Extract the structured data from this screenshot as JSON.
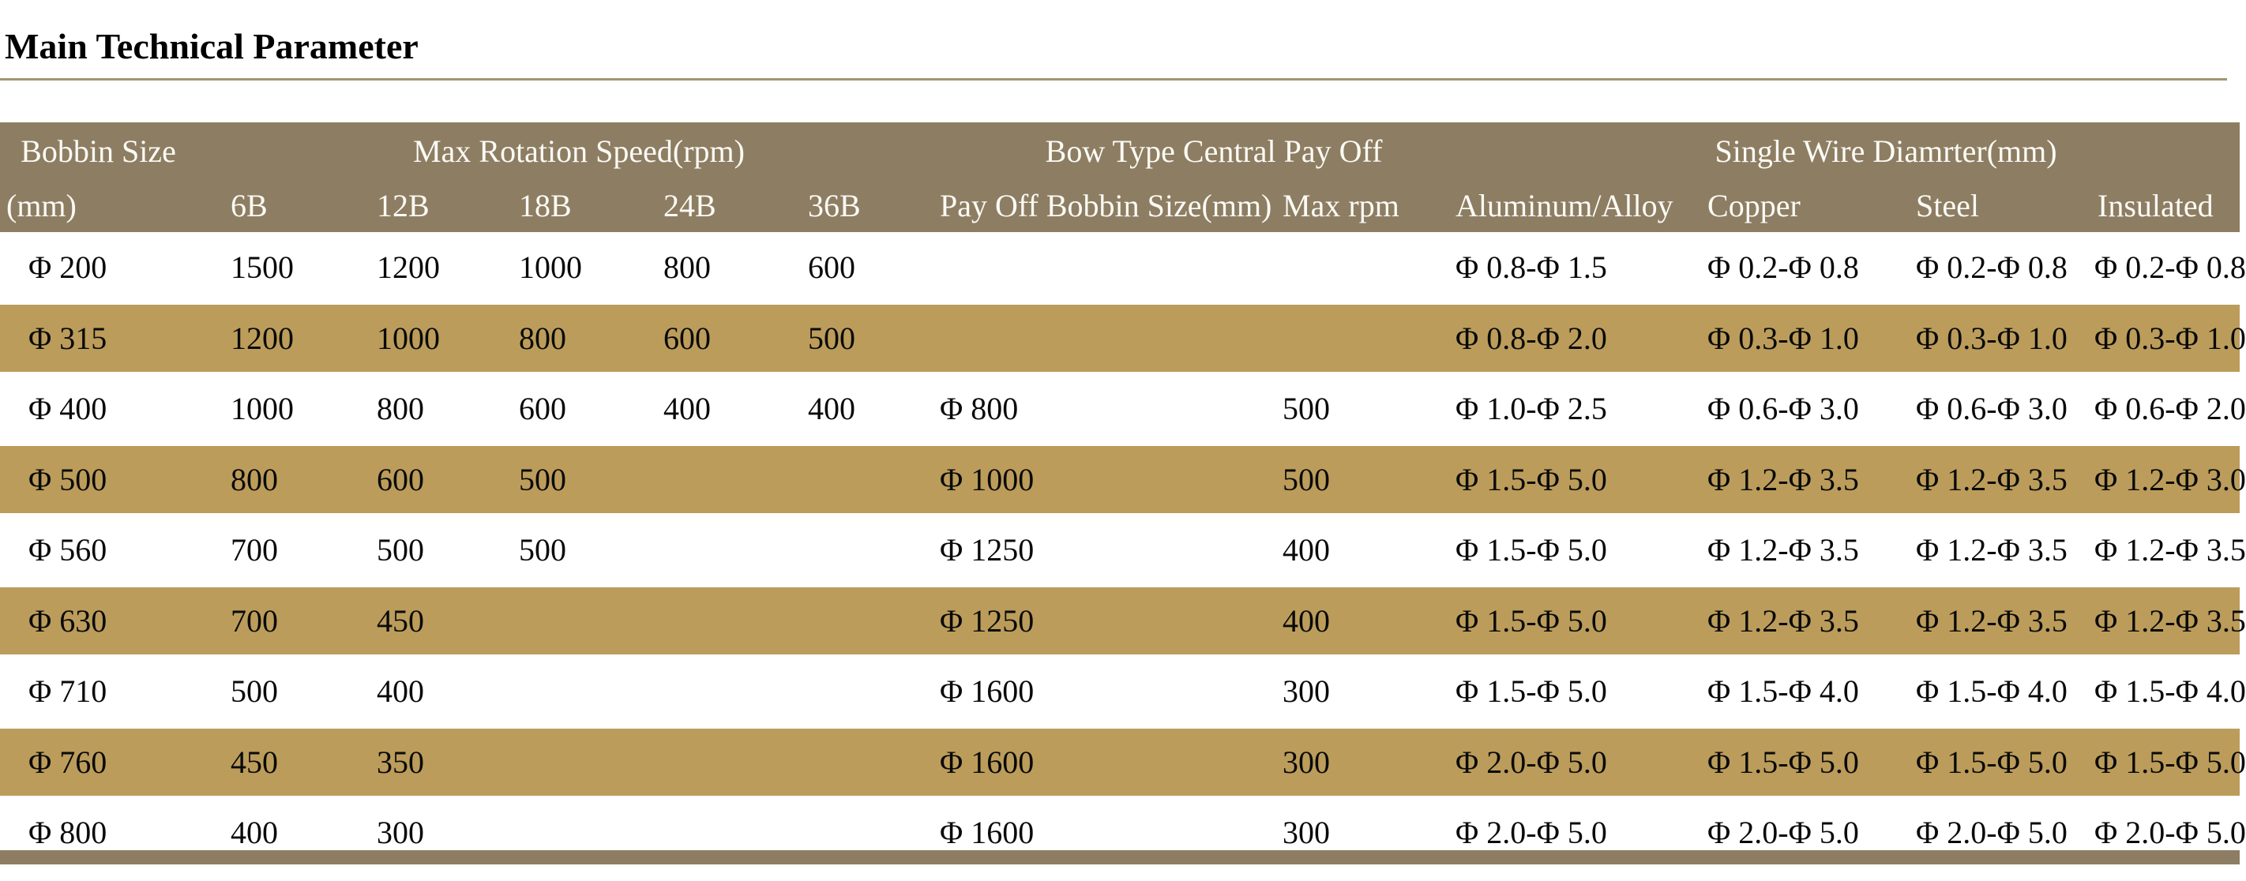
{
  "page": {
    "title": "Main Technical Parameter"
  },
  "colors": {
    "header_bg": "#8d7e63",
    "alt_row_bg": "#bb9c5a",
    "title_rule": "#a39473",
    "footer_bar": "#8d7e63",
    "header_text": "#fcfaf5",
    "body_text": "#0a0a0a"
  },
  "table": {
    "group_headers": [
      {
        "label": "Bobbin Size",
        "span": 1
      },
      {
        "label": "Max Rotation Speed(rpm)",
        "span": 5
      },
      {
        "label": "Bow Type Central Pay Off",
        "span": 2
      },
      {
        "label": "Single Wire Diamrter(mm)",
        "span": 4
      }
    ],
    "sub_headers": [
      "(mm)",
      "6B",
      "12B",
      "18B",
      "24B",
      "36B",
      "Pay Off Bobbin Size(mm)",
      "Max rpm",
      "Aluminum/Alloy",
      "Copper",
      "Steel",
      "Insulated"
    ],
    "rows": [
      [
        "Φ 200",
        "1500",
        "1200",
        "1000",
        "800",
        "600",
        "",
        "",
        "Φ 0.8-Φ 1.5",
        "Φ 0.2-Φ 0.8",
        "Φ 0.2-Φ 0.8",
        "Φ 0.2-Φ 0.8"
      ],
      [
        "Φ 315",
        "1200",
        "1000",
        "800",
        "600",
        "500",
        "",
        "",
        "Φ 0.8-Φ 2.0",
        "Φ 0.3-Φ 1.0",
        "Φ 0.3-Φ 1.0",
        "Φ 0.3-Φ 1.0"
      ],
      [
        "Φ 400",
        "1000",
        "800",
        "600",
        "400",
        "400",
        "Φ 800",
        "500",
        "Φ 1.0-Φ 2.5",
        "Φ 0.6-Φ 3.0",
        "Φ 0.6-Φ 3.0",
        "Φ 0.6-Φ 2.0"
      ],
      [
        "Φ 500",
        "800",
        "600",
        "500",
        "",
        "",
        "Φ 1000",
        "500",
        "Φ 1.5-Φ 5.0",
        "Φ 1.2-Φ 3.5",
        "Φ 1.2-Φ 3.5",
        "Φ 1.2-Φ 3.0"
      ],
      [
        "Φ 560",
        "700",
        "500",
        "500",
        "",
        "",
        "Φ 1250",
        "400",
        "Φ 1.5-Φ 5.0",
        "Φ 1.2-Φ 3.5",
        "Φ 1.2-Φ 3.5",
        "Φ 1.2-Φ 3.5"
      ],
      [
        "Φ 630",
        "700",
        "450",
        "",
        "",
        "",
        "Φ 1250",
        "400",
        "Φ 1.5-Φ 5.0",
        "Φ 1.2-Φ 3.5",
        "Φ 1.2-Φ 3.5",
        "Φ 1.2-Φ 3.5"
      ],
      [
        "Φ 710",
        "500",
        "400",
        "",
        "",
        "",
        "Φ 1600",
        "300",
        "Φ 1.5-Φ 5.0",
        "Φ 1.5-Φ 4.0",
        "Φ 1.5-Φ 4.0",
        "Φ 1.5-Φ 4.0"
      ],
      [
        "Φ 760",
        "450",
        "350",
        "",
        "",
        "",
        "Φ 1600",
        "300",
        "Φ 2.0-Φ 5.0",
        "Φ 1.5-Φ 5.0",
        "Φ 1.5-Φ 5.0",
        "Φ 1.5-Φ 5.0"
      ],
      [
        "Φ 800",
        "400",
        "300",
        "",
        "",
        "",
        "Φ 1600",
        "300",
        "Φ 2.0-Φ 5.0",
        "Φ 2.0-Φ 5.0",
        "Φ 2.0-Φ 5.0",
        "Φ 2.0-Φ 5.0"
      ]
    ]
  }
}
